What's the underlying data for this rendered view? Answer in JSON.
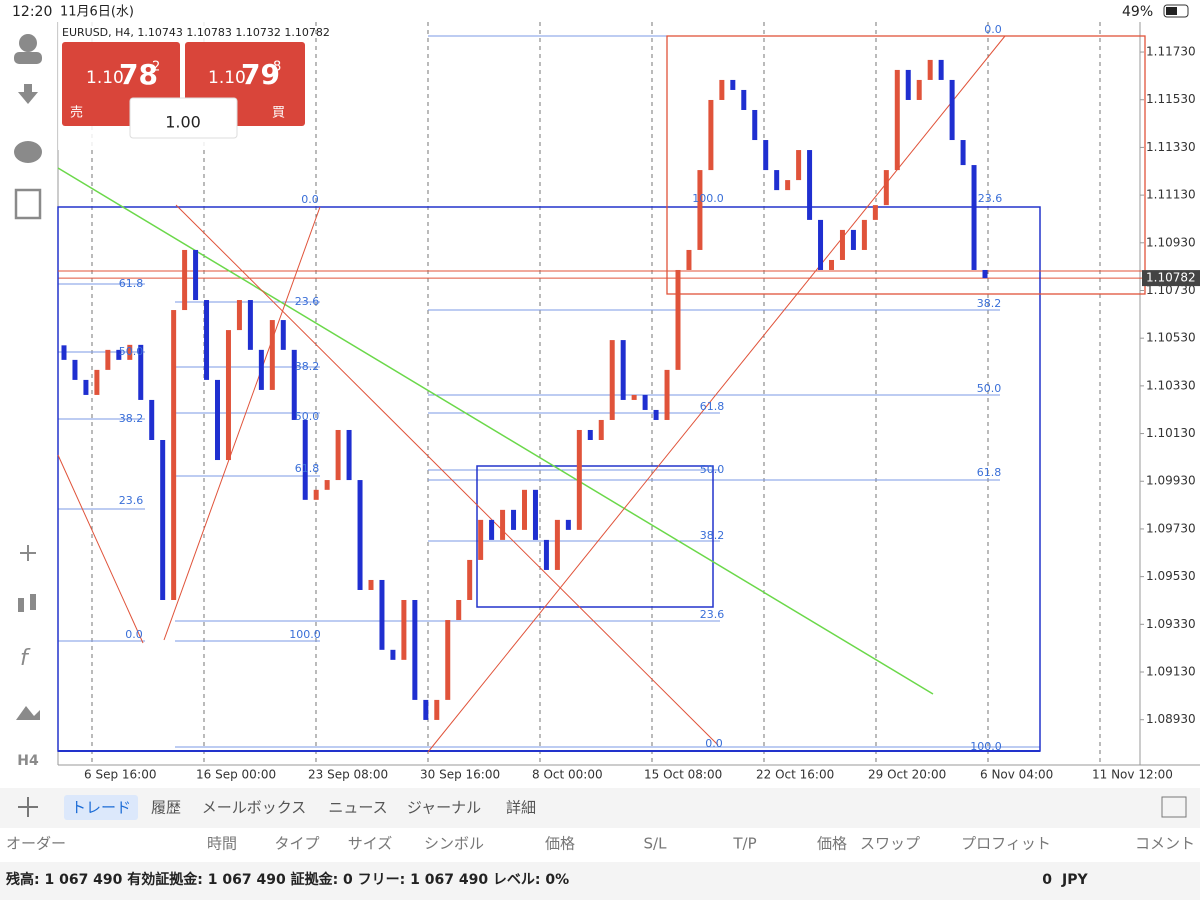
{
  "status_bar": {
    "time": "12:20",
    "date": "11月6日(水)",
    "battery": "49%"
  },
  "quote_panel": {
    "sell": {
      "prefix": "1.10",
      "big": "78",
      "small": "2",
      "label": "売"
    },
    "buy": {
      "prefix": "1.10",
      "big": "79",
      "small": "8",
      "label": "買"
    },
    "volume": "1.00"
  },
  "timeframe": "H4",
  "chart_data": {
    "type": "candlestick",
    "title": "EURUSD, H4, 1.10743 1.10783 1.10732 1.10782",
    "up_color": "#e0533a",
    "down_color": "#1f2fd0",
    "x_ticks": [
      "6 Sep 16:00",
      "16 Sep 00:00",
      "23 Sep 08:00",
      "30 Sep 16:00",
      "8 Oct 00:00",
      "15 Oct 08:00",
      "22 Oct 16:00",
      "29 Oct 20:00",
      "6 Nov 04:00",
      "11 Nov 12:00"
    ],
    "ylim": [
      1.0874,
      1.11856
    ],
    "yticks": [
      {
        "value": 1.1173,
        "label": "1.11730"
      },
      {
        "value": 1.1153,
        "label": "1.11530"
      },
      {
        "value": 1.1133,
        "label": "1.11330"
      },
      {
        "value": 1.1113,
        "label": "1.11130"
      },
      {
        "value": 1.1093,
        "label": "1.10930"
      },
      {
        "value": 1.1073,
        "label": "1.10730"
      },
      {
        "value": 1.1053,
        "label": "1.10530"
      },
      {
        "value": 1.1033,
        "label": "1.10330"
      },
      {
        "value": 1.1013,
        "label": "1.10130"
      },
      {
        "value": 1.0993,
        "label": "1.09930"
      },
      {
        "value": 1.0973,
        "label": "1.09730"
      },
      {
        "value": 1.0953,
        "label": "1.09530"
      },
      {
        "value": 1.0933,
        "label": "1.09330"
      },
      {
        "value": 1.0913,
        "label": "1.09130"
      },
      {
        "value": 1.0893,
        "label": "1.08930"
      }
    ],
    "current_price": 1.10782,
    "open": [
      1.105,
      1.10439,
      1.10355,
      1.10292,
      1.10397,
      1.10481,
      1.10439,
      1.10502,
      1.10271,
      1.10103,
      1.09432,
      1.10648,
      1.109,
      1.1069,
      1.10355,
      1.10019,
      1.10564,
      1.1069,
      1.10481,
      1.10313,
      1.10606,
      1.10481,
      1.10187,
      1.09852,
      1.09894,
      1.09935,
      1.10145,
      1.09935,
      1.09474,
      1.09516,
      1.09223,
      1.09181,
      1.09432,
      1.09013,
      1.08929,
      1.09013,
      1.09348,
      1.09432,
      1.096,
      1.09768,
      1.09684,
      1.0981,
      1.09726,
      1.09894,
      1.09684,
      1.09558,
      1.09768,
      1.09726,
      1.10145,
      1.10103,
      1.10187,
      1.10522,
      1.10271,
      1.10292,
      1.10229,
      1.10187,
      1.10397,
      1.10816,
      1.109,
      1.11235,
      1.11529,
      1.11613,
      1.11571,
      1.11487,
      1.11361,
      1.11235,
      1.11151,
      1.11193,
      1.11319,
      1.11026,
      1.10816,
      1.10858,
      1.10984,
      1.109,
      1.11026,
      1.11088,
      1.11235,
      1.11655,
      1.11529,
      1.11613,
      1.11697,
      1.11613,
      1.11361,
      1.11256,
      1.10816
    ],
    "close": [
      1.10439,
      1.10355,
      1.10292,
      1.10397,
      1.10481,
      1.10439,
      1.10502,
      1.10271,
      1.10103,
      1.09432,
      1.10648,
      1.109,
      1.1069,
      1.10355,
      1.10019,
      1.10564,
      1.1069,
      1.10481,
      1.10313,
      1.10606,
      1.10481,
      1.10187,
      1.09852,
      1.09894,
      1.09935,
      1.10145,
      1.09935,
      1.09474,
      1.09516,
      1.09223,
      1.09181,
      1.09432,
      1.09013,
      1.08929,
      1.09013,
      1.09348,
      1.09432,
      1.096,
      1.09768,
      1.09684,
      1.0981,
      1.09726,
      1.09894,
      1.09684,
      1.09558,
      1.09768,
      1.09726,
      1.10145,
      1.10103,
      1.10187,
      1.10522,
      1.10271,
      1.10292,
      1.10229,
      1.10187,
      1.10397,
      1.10816,
      1.109,
      1.11235,
      1.11529,
      1.11613,
      1.11571,
      1.11487,
      1.11361,
      1.11235,
      1.11151,
      1.11193,
      1.11319,
      1.11026,
      1.10816,
      1.10858,
      1.10984,
      1.109,
      1.11026,
      1.11088,
      1.11235,
      1.11655,
      1.11529,
      1.11613,
      1.11697,
      1.11613,
      1.11361,
      1.11256,
      1.10816,
      1.10782
    ],
    "fib_labels": [
      "0.0",
      "100.0",
      "23.6",
      "38.2",
      "50.0",
      "61.8",
      "0.0",
      "61.8",
      "23.6",
      "50.0",
      "38.2",
      "38.2",
      "50.0",
      "61.8",
      "23.6",
      "0.0",
      "100.0",
      "61.8",
      "50.0",
      "38.2",
      "23.6",
      "0.0",
      "100.0"
    ]
  },
  "tabs": [
    "トレード",
    "履歴",
    "メールボックス",
    "ニュース",
    "ジャーナル",
    "詳細"
  ],
  "columns": [
    "オーダー",
    "時間",
    "タイプ",
    "サイズ",
    "シンボル",
    "価格",
    "S/L",
    "T/P",
    "価格",
    "スワップ",
    "プロフィット",
    "コメント"
  ],
  "footer": {
    "account": "残高: 1 067 490 有効証拠金: 1 067 490 証拠金: 0 フリー: 1 067 490 レベル: 0%",
    "profit": "0",
    "currency": "JPY"
  }
}
